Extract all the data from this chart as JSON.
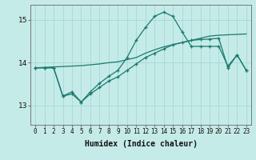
{
  "xlabel": "Humidex (Indice chaleur)",
  "background_color": "#c5ebe8",
  "grid_color": "#a8dcd8",
  "line_color": "#1a7a6e",
  "x_ticks": [
    0,
    1,
    2,
    3,
    4,
    5,
    6,
    7,
    8,
    9,
    10,
    11,
    12,
    13,
    14,
    15,
    16,
    17,
    18,
    19,
    20,
    21,
    22,
    23
  ],
  "ylim": [
    12.55,
    15.35
  ],
  "yticks": [
    13,
    14,
    15
  ],
  "line1_x": [
    0,
    1,
    2,
    3,
    4,
    5,
    6,
    7,
    8,
    9,
    10,
    11,
    12,
    13,
    14,
    15,
    16,
    17,
    18,
    19,
    20,
    21,
    22,
    23
  ],
  "line1_y": [
    13.88,
    13.88,
    13.88,
    13.22,
    13.32,
    13.08,
    13.32,
    13.52,
    13.68,
    13.82,
    14.12,
    14.52,
    14.82,
    15.08,
    15.18,
    15.08,
    14.72,
    14.38,
    14.38,
    14.38,
    14.38,
    13.92,
    14.18,
    13.82
  ],
  "line2_x": [
    0,
    1,
    2,
    3,
    4,
    5,
    6,
    7,
    8,
    9,
    10,
    11,
    12,
    13,
    14,
    15,
    16,
    17,
    18,
    19,
    20,
    21,
    22,
    23
  ],
  "line2_y": [
    13.88,
    13.89,
    13.9,
    13.91,
    13.92,
    13.93,
    13.95,
    13.97,
    14.0,
    14.02,
    14.07,
    14.12,
    14.22,
    14.3,
    14.37,
    14.42,
    14.47,
    14.52,
    14.57,
    14.62,
    14.64,
    14.65,
    14.66,
    14.67
  ],
  "line3_x": [
    0,
    1,
    2,
    3,
    4,
    5,
    6,
    7,
    8,
    9,
    10,
    11,
    12,
    13,
    14,
    15,
    16,
    17,
    18,
    19,
    20,
    21,
    22,
    23
  ],
  "line3_y": [
    13.88,
    13.88,
    13.88,
    13.22,
    13.27,
    13.08,
    13.27,
    13.42,
    13.57,
    13.67,
    13.82,
    13.97,
    14.12,
    14.22,
    14.32,
    14.42,
    14.47,
    14.52,
    14.54,
    14.55,
    14.57,
    13.88,
    14.18,
    13.82
  ],
  "tick_fontsize": 5.5,
  "xlabel_fontsize": 7
}
